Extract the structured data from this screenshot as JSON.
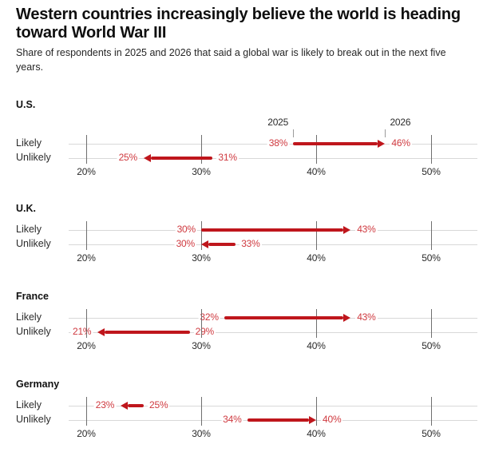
{
  "header": {
    "title": "Western countries increasingly believe the world is heading toward World War III",
    "subtitle": "Share of respondents in 2025 and 2026 that said a global war is likely to break out in the next five years."
  },
  "colors": {
    "arrow": "#bf161c",
    "value_label": "#cf393f",
    "row_line": "#d8d8d8",
    "gridline": "#6f6f6f",
    "year_tick": "#9b9b9b",
    "text": "#2b2b2b"
  },
  "chart_data": {
    "type": "arrow",
    "subtype": "dumbbell-arrow-change",
    "unit": "%",
    "title": "Western countries increasingly believe the world is heading toward World War III",
    "xlabel": "",
    "ylabel": "",
    "grid": true,
    "x_axis": {
      "tick_values": [
        20,
        30,
        40,
        50
      ],
      "tick_labels": [
        "20%",
        "30%",
        "40%",
        "50%"
      ],
      "xlim": [
        17,
        54
      ]
    },
    "year_from_label": "2025",
    "year_to_label": "2026",
    "groups": [
      {
        "country": "U.S.",
        "show_year_labels": true,
        "rows": [
          {
            "label": "Likely",
            "from": 38,
            "to": 46
          },
          {
            "label": "Unlikely",
            "from": 31,
            "to": 25
          }
        ]
      },
      {
        "country": "U.K.",
        "show_year_labels": false,
        "rows": [
          {
            "label": "Likely",
            "from": 30,
            "to": 43
          },
          {
            "label": "Unlikely",
            "from": 33,
            "to": 30
          }
        ]
      },
      {
        "country": "France",
        "show_year_labels": false,
        "rows": [
          {
            "label": "Likely",
            "from": 32,
            "to": 43
          },
          {
            "label": "Unlikely",
            "from": 29,
            "to": 21
          }
        ]
      },
      {
        "country": "Germany",
        "show_year_labels": false,
        "rows": [
          {
            "label": "Likely",
            "from": 25,
            "to": 23
          },
          {
            "label": "Unlikely",
            "from": 34,
            "to": 40
          }
        ]
      }
    ]
  }
}
